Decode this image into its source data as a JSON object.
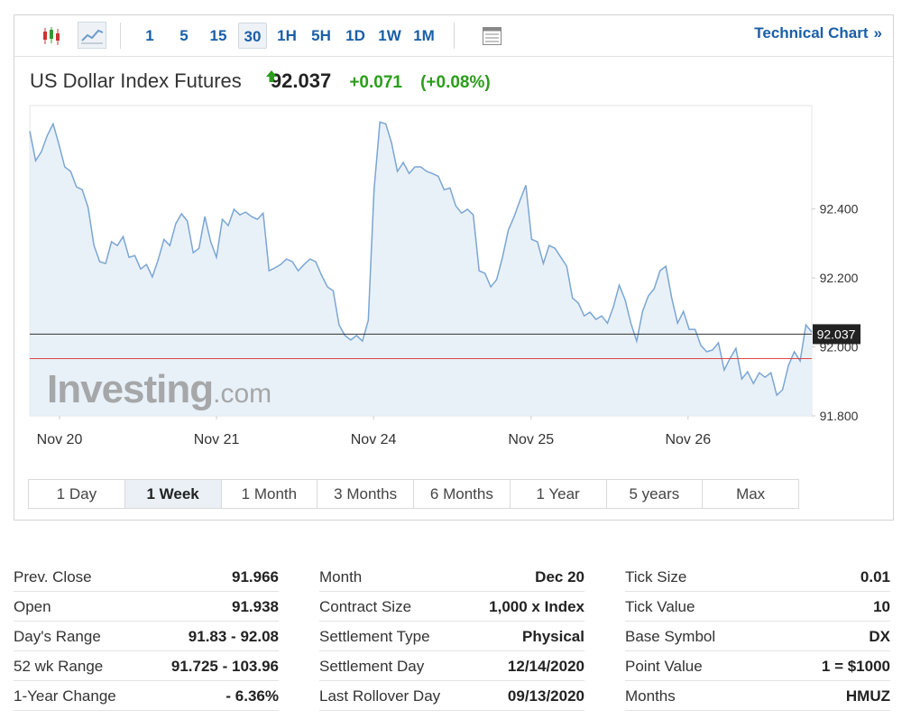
{
  "toolbar": {
    "intervals": [
      "1",
      "5",
      "15",
      "30",
      "1H",
      "5H",
      "1D",
      "1W",
      "1M"
    ],
    "active": "30",
    "link": "Technical Chart",
    "link_arrow": "»"
  },
  "header": {
    "title": "US Dollar Index Futures",
    "price": "92.037",
    "change": "+0.071",
    "change_percent": "(+0.08%)"
  },
  "chart_data": {
    "type": "line",
    "color": "#7aa6d4",
    "fill": "#e4edf6",
    "watermark": {
      "brand": "Investing",
      "suffix": ".com"
    },
    "values": [
      92.626,
      92.54,
      92.566,
      92.613,
      92.647,
      92.587,
      92.522,
      92.509,
      92.464,
      92.456,
      92.404,
      92.294,
      92.247,
      92.242,
      92.305,
      92.294,
      92.32,
      92.26,
      92.265,
      92.226,
      92.239,
      92.203,
      92.252,
      92.312,
      92.294,
      92.357,
      92.386,
      92.365,
      92.273,
      92.286,
      92.378,
      92.305,
      92.26,
      92.37,
      92.352,
      92.399,
      92.383,
      92.391,
      92.378,
      92.37,
      92.388,
      92.221,
      92.229,
      92.239,
      92.255,
      92.247,
      92.221,
      92.239,
      92.255,
      92.247,
      92.208,
      92.174,
      92.163,
      92.064,
      92.033,
      92.02,
      92.033,
      92.017,
      92.077,
      92.456,
      92.652,
      92.647,
      92.592,
      92.509,
      92.535,
      92.503,
      92.522,
      92.522,
      92.509,
      92.503,
      92.495,
      92.456,
      92.461,
      92.409,
      92.388,
      92.399,
      92.383,
      92.221,
      92.213,
      92.174,
      92.195,
      92.26,
      92.339,
      92.378,
      92.425,
      92.469,
      92.312,
      92.305,
      92.242,
      92.294,
      92.286,
      92.26,
      92.234,
      92.142,
      92.127,
      92.09,
      92.101,
      92.08,
      92.09,
      92.069,
      92.116,
      92.179,
      92.137,
      92.069,
      92.017,
      92.103,
      92.148,
      92.169,
      92.221,
      92.234,
      92.142,
      92.069,
      92.103,
      92.051,
      92.051,
      92.004,
      91.986,
      91.991,
      92.012,
      91.933,
      91.967,
      91.996,
      91.907,
      91.928,
      91.894,
      91.925,
      91.912,
      91.925,
      91.86,
      91.876,
      91.946,
      91.986,
      91.959,
      92.064,
      92.043
    ],
    "xlim": [
      0,
      134
    ],
    "xticks": [
      {
        "value": 5.1,
        "label": "Nov 20"
      },
      {
        "value": 32,
        "label": "Nov 21"
      },
      {
        "value": 58.9,
        "label": "Nov 24"
      },
      {
        "value": 85.9,
        "label": "Nov 25"
      },
      {
        "value": 112.8,
        "label": "Nov 26"
      }
    ],
    "ylim": [
      91.8,
      92.7
    ],
    "yticks": [
      {
        "value": 91.8,
        "label": "91.800"
      },
      {
        "value": 92.0,
        "label": "92.000"
      },
      {
        "value": 92.2,
        "label": "92.200"
      },
      {
        "value": 92.4,
        "label": "92.400"
      }
    ],
    "reference_lines": [
      {
        "value": 92.037,
        "color": "#333333"
      },
      {
        "value": 91.966,
        "color": "#e04545"
      }
    ]
  },
  "ranges": {
    "items": [
      "1 Day",
      "1 Week",
      "1 Month",
      "3 Months",
      "6 Months",
      "1 Year",
      "5 years",
      "Max"
    ],
    "active": "1 Week"
  },
  "stats": [
    [
      [
        "Prev. Close",
        "91.966"
      ],
      [
        "Open",
        "91.938"
      ],
      [
        "Day's Range",
        "91.83 - 92.08"
      ],
      [
        "52 wk Range",
        "91.725 - 103.96"
      ],
      [
        "1-Year Change",
        "- 6.36%"
      ]
    ],
    [
      [
        "Month",
        "Dec 20"
      ],
      [
        "Contract Size",
        "1,000 x Index"
      ],
      [
        "Settlement Type",
        "Physical"
      ],
      [
        "Settlement Day",
        "12/14/2020"
      ],
      [
        "Last Rollover Day",
        "09/13/2020"
      ]
    ],
    [
      [
        "Tick Size",
        "0.01"
      ],
      [
        "Tick Value",
        "10"
      ],
      [
        "Base Symbol",
        "DX"
      ],
      [
        "Point Value",
        "1 = $1000"
      ],
      [
        "Months",
        "HMUZ"
      ]
    ]
  ]
}
